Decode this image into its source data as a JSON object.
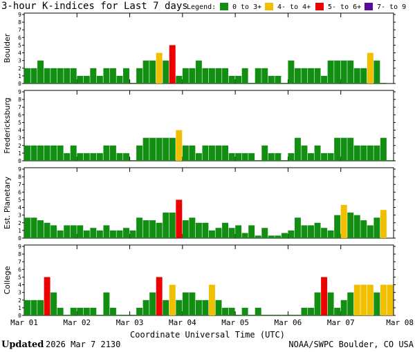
{
  "title": "3-hour K-indices for Last 7 days",
  "legend": {
    "label": "Legend:",
    "items": [
      {
        "label": "0 to 3+",
        "color": "#128f12"
      },
      {
        "label": "4- to 4+",
        "color": "#f0c000"
      },
      {
        "label": "5- to 6+",
        "color": "#ee0000"
      },
      {
        "label": "7- to 9",
        "color": "#5a0a96"
      }
    ]
  },
  "xaxis": {
    "title": "Coordinate Universal Time (UTC)",
    "ticks": [
      "Mar 01",
      "Mar 02",
      "Mar 03",
      "Mar 04",
      "Mar 05",
      "Mar 06",
      "Mar 07",
      "Mar 08"
    ]
  },
  "footer": {
    "updated_label": "Updated",
    "updated_time": "2026 Mar  7 2130",
    "credit": "NOAA/SWPC Boulder, CO USA"
  },
  "chart_data": [
    {
      "type": "bar",
      "name": "Boulder",
      "ylabel": "Boulder",
      "ylim": [
        0,
        9
      ],
      "yticks": [
        0,
        1,
        2,
        3,
        4,
        5,
        6,
        7,
        8,
        9
      ],
      "x_start": "Mar 01",
      "interval_hours": 3,
      "values": [
        2,
        2,
        3,
        2,
        2,
        2,
        2,
        2,
        1,
        1,
        2,
        1,
        2,
        2,
        1,
        2,
        0,
        2,
        3,
        3,
        4,
        3,
        5,
        1,
        2,
        2,
        3,
        2,
        2,
        2,
        2,
        1,
        1,
        2,
        0,
        2,
        2,
        1,
        1,
        0,
        3,
        2,
        2,
        2,
        2,
        1,
        3,
        3,
        3,
        3,
        2,
        2,
        4,
        3,
        0
      ]
    },
    {
      "type": "bar",
      "name": "Fredericksburg",
      "ylabel": "Fredericksburg",
      "ylim": [
        0,
        9
      ],
      "yticks": [
        0,
        1,
        2,
        3,
        4,
        5,
        6,
        7,
        8,
        9
      ],
      "x_start": "Mar 01",
      "interval_hours": 3,
      "values": [
        2,
        2,
        2,
        2,
        2,
        2,
        1,
        2,
        1,
        1,
        1,
        1,
        2,
        2,
        1,
        1,
        0,
        2,
        3,
        3,
        3,
        3,
        3,
        4,
        2,
        2,
        1,
        2,
        2,
        2,
        2,
        1,
        1,
        1,
        1,
        0,
        2,
        1,
        1,
        0,
        1,
        3,
        2,
        1,
        2,
        1,
        1,
        3,
        3,
        3,
        2,
        2,
        2,
        2,
        3,
        0
      ]
    },
    {
      "type": "bar",
      "name": "Est. Planetary",
      "ylabel": "Est. Planetary",
      "ylim": [
        0,
        9
      ],
      "yticks": [
        0,
        1,
        2,
        3,
        4,
        5,
        6,
        7,
        8,
        9
      ],
      "x_start": "Mar 01",
      "interval_hours": 3,
      "values": [
        2.67,
        2.67,
        2.33,
        2,
        1.67,
        1,
        1.67,
        1.67,
        1.67,
        1,
        1.33,
        1,
        1.67,
        1,
        1,
        1.33,
        1,
        2.67,
        2.33,
        2.33,
        2,
        3.33,
        3.33,
        5,
        2.33,
        2.67,
        2,
        2,
        1,
        1.33,
        2,
        1.33,
        1.67,
        0.67,
        1.67,
        0.33,
        1.33,
        0.33,
        0.33,
        0.67,
        1,
        2.67,
        1.67,
        1.67,
        2,
        1.33,
        1,
        3,
        4.33,
        3.33,
        3,
        2.33,
        1.67,
        2.67,
        3.67
      ]
    },
    {
      "type": "bar",
      "name": "College",
      "ylabel": "College",
      "ylim": [
        0,
        9
      ],
      "yticks": [
        0,
        1,
        2,
        3,
        4,
        5,
        6,
        7,
        8,
        9
      ],
      "x_start": "Mar 01",
      "interval_hours": 3,
      "values": [
        2,
        2,
        2,
        5,
        3,
        1,
        0,
        1,
        1,
        1,
        1,
        0,
        3,
        1,
        0,
        0,
        0,
        1,
        2,
        3,
        5,
        2,
        4,
        2,
        3,
        3,
        2,
        2,
        4,
        2,
        1,
        1,
        0,
        1,
        0,
        1,
        0,
        0,
        0,
        0,
        0,
        0,
        1,
        1,
        3,
        5,
        3,
        1,
        2,
        3,
        4,
        4,
        4,
        3,
        4,
        4
      ]
    }
  ]
}
